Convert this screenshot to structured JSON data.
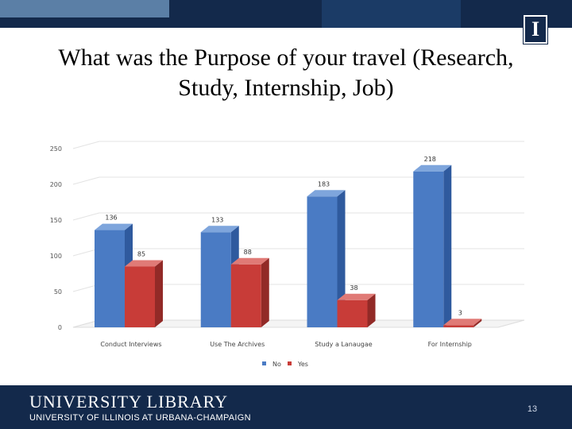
{
  "slide": {
    "title": "What was the Purpose of your travel (Research, Study, Internship, Job)",
    "page_number": "13",
    "logo_letter": "I"
  },
  "footer": {
    "library": "UNIVERSITY LIBRARY",
    "university": "UNIVERSITY OF ILLINOIS AT URBANA-CHAMPAIGN"
  },
  "colors": {
    "dark_blue": "#13294b",
    "no_series": "#4a7bc4",
    "yes_series": "#c83c38"
  },
  "chart_data": {
    "type": "bar",
    "title": "",
    "xlabel": "",
    "ylabel": "",
    "categories": [
      "Conduct Interviews",
      "Use The Archives",
      "Study a Lanaugae",
      "For Internship"
    ],
    "series": [
      {
        "name": "No",
        "values": [
          136,
          133,
          183,
          218
        ]
      },
      {
        "name": "Yes",
        "values": [
          85,
          88,
          38,
          3
        ]
      }
    ],
    "ylim": [
      0,
      250
    ],
    "yticks": [
      0,
      50,
      100,
      150,
      200,
      250
    ],
    "grid": true,
    "legend_position": "bottom",
    "three_d": true
  }
}
